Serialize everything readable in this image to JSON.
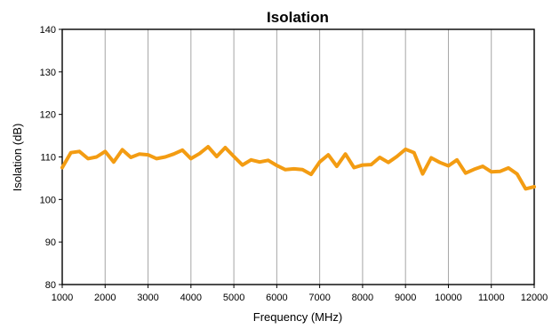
{
  "chart_data": {
    "type": "line",
    "title": "Isolation",
    "xlabel": "Frequency (MHz)",
    "ylabel": "Isolation  (dB)",
    "xlim": [
      1000,
      12000
    ],
    "ylim": [
      80,
      140
    ],
    "x_ticks": [
      "1000",
      "2000",
      "3000",
      "4000",
      "5000",
      "6000",
      "7000",
      "8000",
      "9000",
      "10000",
      "11000",
      "12000"
    ],
    "y_ticks": [
      "80",
      "90",
      "100",
      "110",
      "120",
      "130",
      "140"
    ],
    "grid": "vertical",
    "legend": "none",
    "series": [
      {
        "color": "#F39C12",
        "x": [
          1000,
          1200,
          1400,
          1600,
          1800,
          2000,
          2200,
          2400,
          2600,
          2800,
          3000,
          3200,
          3400,
          3600,
          3800,
          4000,
          4200,
          4400,
          4600,
          4800,
          5000,
          5200,
          5400,
          5600,
          5800,
          6000,
          6200,
          6400,
          6600,
          6800,
          7000,
          7200,
          7400,
          7600,
          7800,
          8000,
          8200,
          8400,
          8600,
          8800,
          9000,
          9200,
          9400,
          9600,
          9800,
          10000,
          10200,
          10400,
          10600,
          10800,
          11000,
          11200,
          11400,
          11600,
          11800,
          12000
        ],
        "y": [
          107.5,
          111,
          111.3,
          109.6,
          110,
          111.3,
          108.8,
          111.7,
          109.9,
          110.7,
          110.5,
          109.6,
          110,
          110.7,
          111.6,
          109.6,
          110.8,
          112.4,
          110.1,
          112.2,
          110.1,
          108.1,
          109.3,
          108.8,
          109.2,
          108,
          107,
          107.2,
          107,
          105.9,
          108.8,
          110.5,
          107.8,
          110.7,
          107.5,
          108.1,
          108.2,
          109.9,
          108.7,
          110.1,
          111.8,
          111,
          106,
          109.8,
          108.7,
          107.9,
          109.3,
          106.2,
          107.1,
          107.8,
          106.5,
          106.6,
          107.4,
          106,
          102.5,
          103
        ]
      }
    ]
  }
}
